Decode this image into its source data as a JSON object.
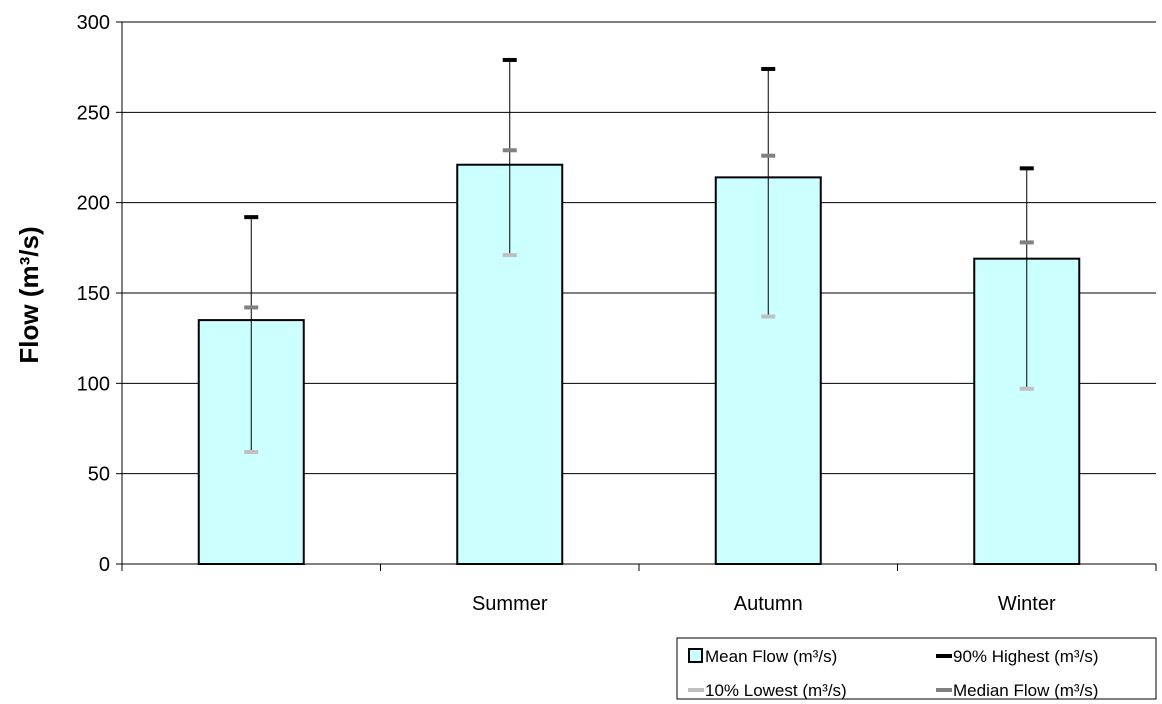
{
  "chart_data": {
    "type": "bar",
    "title": "",
    "xlabel": "",
    "ylabel": "Flow (m³/s)",
    "ylim": [
      0,
      300
    ],
    "yticks": [
      0,
      50,
      100,
      150,
      200,
      250,
      300
    ],
    "grid": true,
    "legend_position": "bottom-right",
    "categories": [
      "",
      "Summer",
      "Autumn",
      "Winter"
    ],
    "series": [
      {
        "name": "Mean Flow (m³/s)",
        "kind": "bar",
        "color": "#ccffff",
        "values": [
          135,
          221,
          214,
          169
        ]
      },
      {
        "name": "90% Highest (m³/s)",
        "kind": "marker",
        "color": "#000000",
        "values": [
          192,
          279,
          274,
          219
        ]
      },
      {
        "name": "10% Lowest (m³/s)",
        "kind": "marker",
        "color": "#c0c0c0",
        "values": [
          62,
          171,
          137,
          97
        ]
      },
      {
        "name": "Median Flow (m³/s)",
        "kind": "marker",
        "color": "#808080",
        "values": [
          142,
          229,
          226,
          178
        ]
      }
    ]
  }
}
